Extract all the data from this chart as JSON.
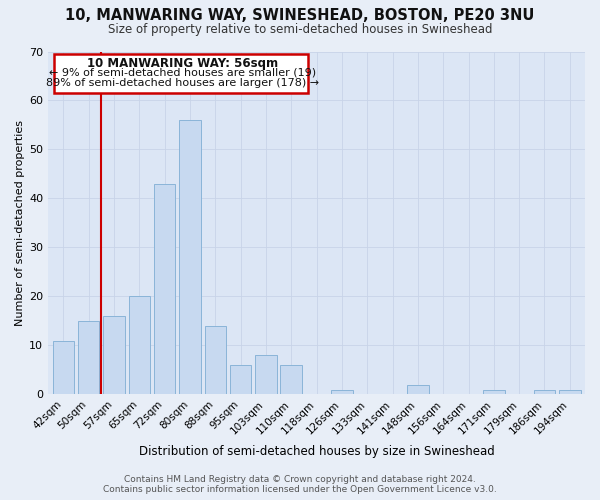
{
  "title": "10, MANWARING WAY, SWINESHEAD, BOSTON, PE20 3NU",
  "subtitle": "Size of property relative to semi-detached houses in Swineshead",
  "xlabel": "Distribution of semi-detached houses by size in Swineshead",
  "ylabel": "Number of semi-detached properties",
  "bar_labels": [
    "42sqm",
    "50sqm",
    "57sqm",
    "65sqm",
    "72sqm",
    "80sqm",
    "88sqm",
    "95sqm",
    "103sqm",
    "110sqm",
    "118sqm",
    "126sqm",
    "133sqm",
    "141sqm",
    "148sqm",
    "156sqm",
    "164sqm",
    "171sqm",
    "179sqm",
    "186sqm",
    "194sqm"
  ],
  "bar_values": [
    11,
    15,
    16,
    20,
    43,
    56,
    14,
    6,
    8,
    6,
    0,
    1,
    0,
    0,
    2,
    0,
    0,
    1,
    0,
    1,
    1
  ],
  "bar_color": "#c7d9f0",
  "bar_edge_color": "#8ab4d8",
  "highlight_color": "#cc0000",
  "annotation_title": "10 MANWARING WAY: 56sqm",
  "annotation_line1": "← 9% of semi-detached houses are smaller (19)",
  "annotation_line2": "89% of semi-detached houses are larger (178) →",
  "ylim": [
    0,
    70
  ],
  "yticks": [
    0,
    10,
    20,
    30,
    40,
    50,
    60,
    70
  ],
  "footer_line1": "Contains HM Land Registry data © Crown copyright and database right 2024.",
  "footer_line2": "Contains public sector information licensed under the Open Government Licence v3.0.",
  "bg_color": "#e8eef7",
  "plot_bg_color": "#dce6f5"
}
